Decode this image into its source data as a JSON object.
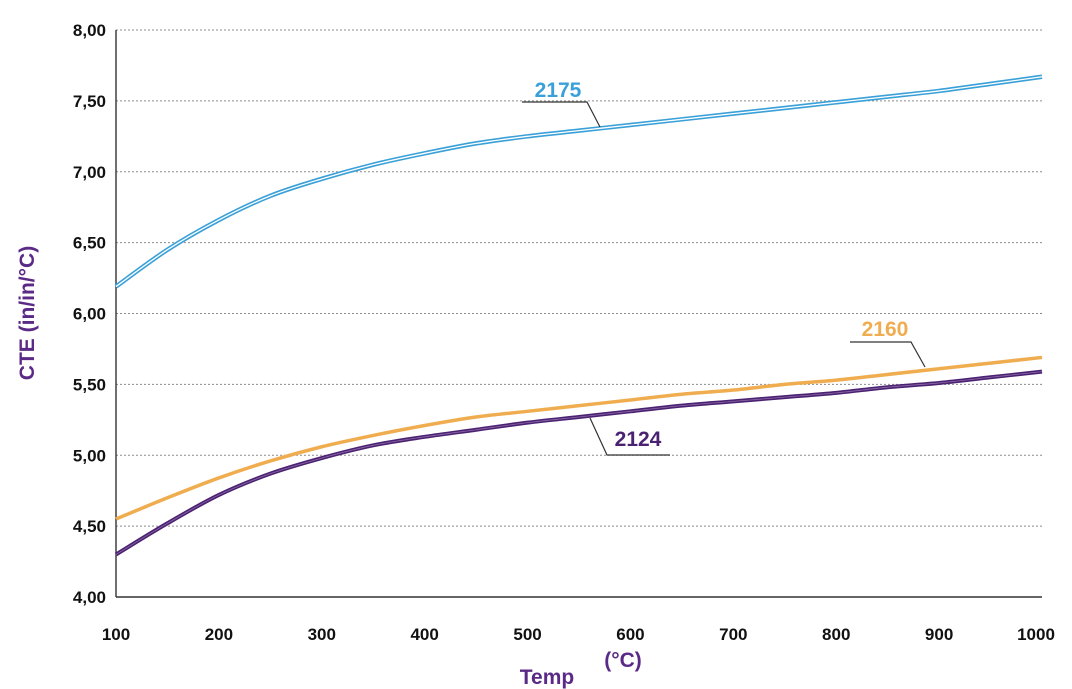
{
  "chart_data": {
    "type": "line",
    "xlabel": "Temp",
    "xunit": "(°C)",
    "ylabel": "CTE (in/in/°C)",
    "xlim": [
      100,
      1000
    ],
    "ylim": [
      4.0,
      8.0
    ],
    "x_ticks": [
      100,
      200,
      300,
      400,
      500,
      600,
      700,
      800,
      900,
      1000
    ],
    "y_ticks": [
      "4,00",
      "4,50",
      "5,00",
      "5,50",
      "6,00",
      "6,50",
      "7,00",
      "7,50",
      "8,00"
    ],
    "grid": true,
    "colors": {
      "text": "#5b2a86",
      "axis": "#333333",
      "grid": "#8c8c8c"
    },
    "series": [
      {
        "name": "2175",
        "color": "#3aa0d8",
        "style": "double",
        "x": [
          100,
          150,
          200,
          250,
          300,
          350,
          400,
          450,
          500,
          550,
          600,
          650,
          700,
          750,
          800,
          850,
          900,
          950,
          1000
        ],
        "y": [
          6.19,
          6.45,
          6.66,
          6.83,
          6.95,
          7.05,
          7.13,
          7.2,
          7.25,
          7.29,
          7.33,
          7.37,
          7.41,
          7.45,
          7.49,
          7.53,
          7.57,
          7.62,
          7.67
        ]
      },
      {
        "name": "2160",
        "color": "#f0ad50",
        "style": "single",
        "x": [
          100,
          150,
          200,
          250,
          300,
          350,
          400,
          450,
          500,
          550,
          600,
          650,
          700,
          750,
          800,
          850,
          900,
          950,
          1000
        ],
        "y": [
          4.55,
          4.7,
          4.84,
          4.96,
          5.06,
          5.14,
          5.21,
          5.27,
          5.31,
          5.35,
          5.39,
          5.43,
          5.46,
          5.5,
          5.53,
          5.57,
          5.61,
          5.65,
          5.69
        ]
      },
      {
        "name": "2124",
        "color": "#4b2272",
        "style": "double-dark",
        "x": [
          100,
          150,
          200,
          250,
          300,
          350,
          400,
          450,
          500,
          550,
          600,
          650,
          700,
          750,
          800,
          850,
          900,
          950,
          1000
        ],
        "y": [
          4.3,
          4.52,
          4.72,
          4.87,
          4.98,
          5.07,
          5.13,
          5.18,
          5.23,
          5.27,
          5.31,
          5.35,
          5.38,
          5.41,
          5.44,
          5.48,
          5.51,
          5.55,
          5.59
        ]
      }
    ]
  }
}
